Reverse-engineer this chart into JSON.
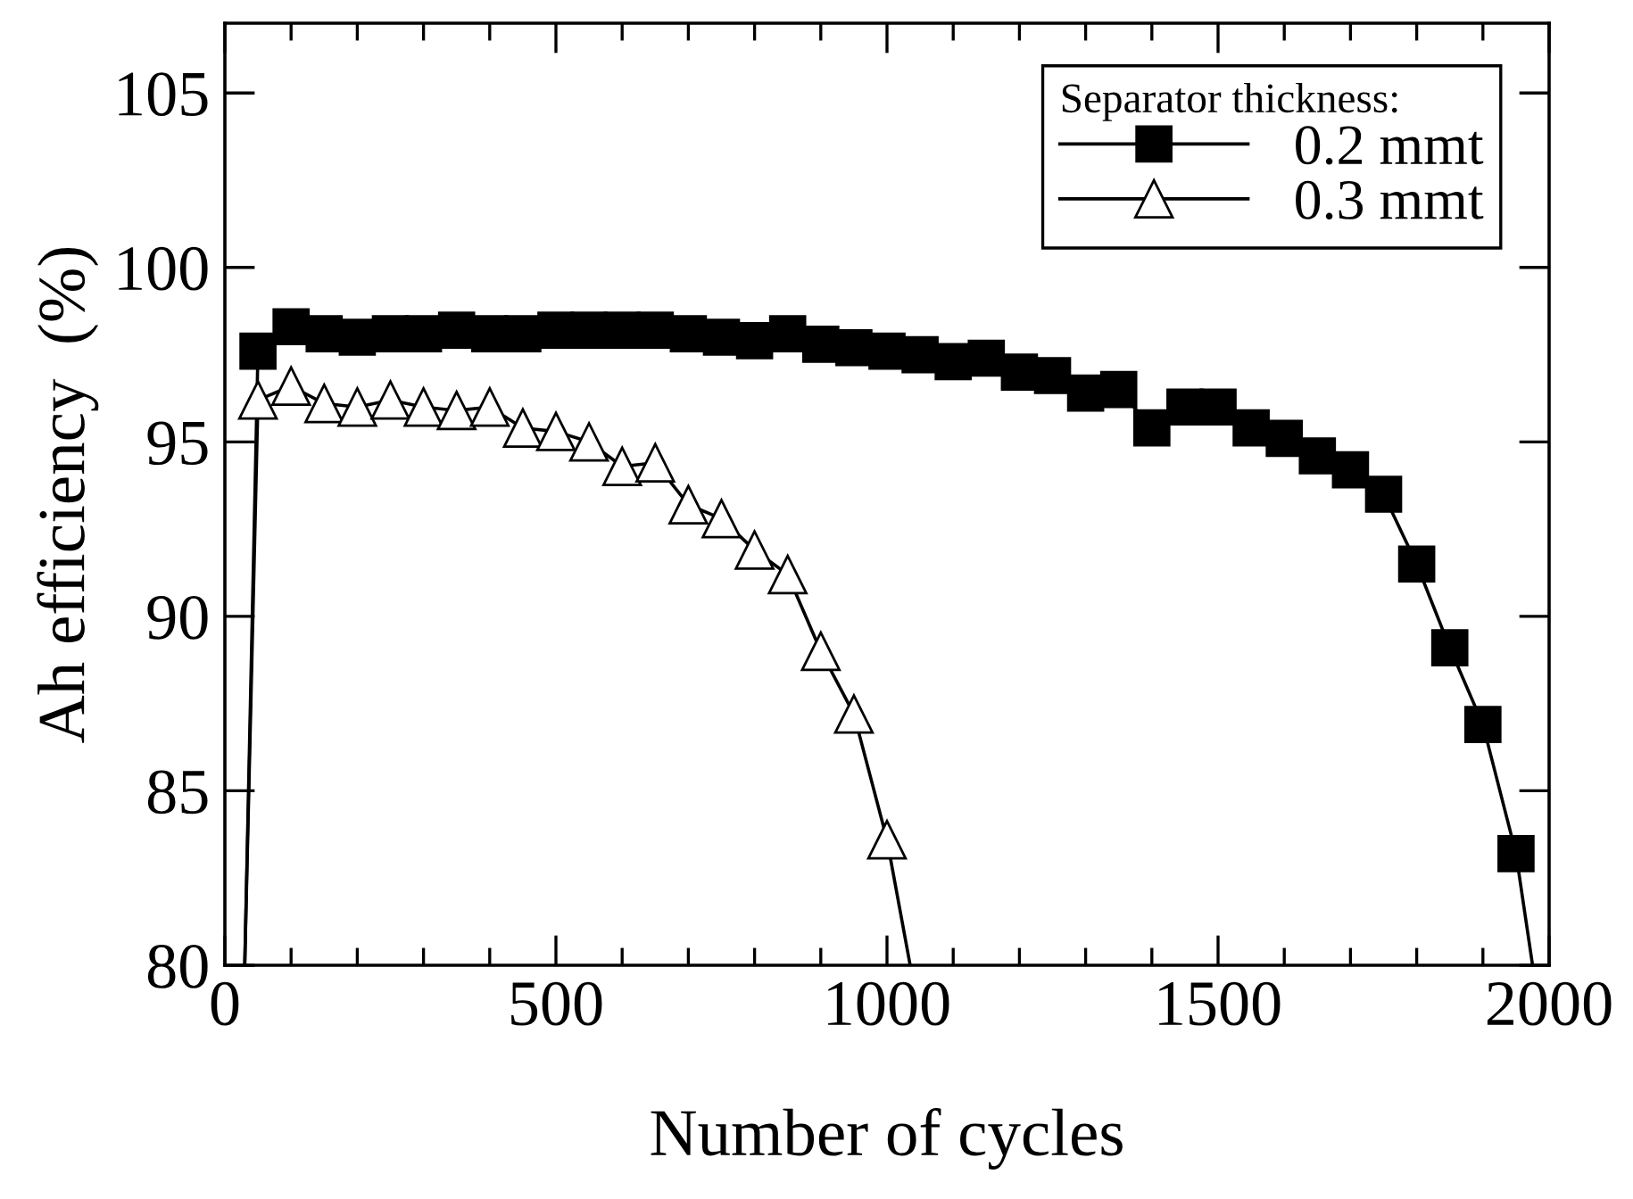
{
  "chart_data": {
    "type": "line",
    "xlabel": "Number of cycles",
    "ylabel": "Ah efficiency  (%)",
    "legend_title": "Separator thickness:",
    "xlim": [
      0,
      2000
    ],
    "ylim": [
      80,
      107
    ],
    "xticks": [
      0,
      {
        "value": 100,
        "label": null
      },
      {
        "value": 200,
        "label": null
      },
      {
        "value": 300,
        "label": null
      },
      {
        "value": 400,
        "label": null
      },
      500,
      {
        "value": 600,
        "label": null
      },
      {
        "value": 700,
        "label": null
      },
      {
        "value": 800,
        "label": null
      },
      {
        "value": 900,
        "label": null
      },
      1000,
      {
        "value": 1100,
        "label": null
      },
      {
        "value": 1200,
        "label": null
      },
      {
        "value": 1300,
        "label": null
      },
      {
        "value": 1400,
        "label": null
      },
      1500,
      {
        "value": 1600,
        "label": null
      },
      {
        "value": 1700,
        "label": null
      },
      {
        "value": 1800,
        "label": null
      },
      {
        "value": 1900,
        "label": null
      },
      2000
    ],
    "yticks": [
      80,
      85,
      90,
      95,
      100,
      105
    ],
    "legend": "top right",
    "grid": false,
    "line_style": "solid",
    "series": [
      {
        "name": "0.2 mmt",
        "color": "#000000",
        "marker": "square",
        "x": [
          30,
          50,
          100,
          150,
          200,
          250,
          300,
          350,
          400,
          450,
          500,
          550,
          600,
          650,
          700,
          750,
          800,
          850,
          900,
          950,
          1000,
          1050,
          1100,
          1150,
          1200,
          1250,
          1300,
          1350,
          1400,
          1450,
          1500,
          1550,
          1600,
          1650,
          1700,
          1750,
          1800,
          1850,
          1900,
          1950,
          1975
        ],
        "values": [
          80,
          97.6,
          98.3,
          98.1,
          98.0,
          98.1,
          98.1,
          98.2,
          98.1,
          98.1,
          98.2,
          98.2,
          98.2,
          98.2,
          98.1,
          98.0,
          97.9,
          98.1,
          97.8,
          97.7,
          97.6,
          97.5,
          97.3,
          97.4,
          97.0,
          96.9,
          96.4,
          96.5,
          95.4,
          96.0,
          96.0,
          95.4,
          95.1,
          94.6,
          94.2,
          93.5,
          91.5,
          89.1,
          86.9,
          83.2,
          80
        ]
      },
      {
        "name": "0.3 mmt",
        "color": "#000000",
        "marker": "triangle",
        "x": [
          30,
          50,
          100,
          150,
          200,
          250,
          300,
          350,
          400,
          450,
          500,
          550,
          600,
          650,
          700,
          750,
          800,
          850,
          900,
          950,
          1000,
          1035
        ],
        "values": [
          80,
          96.2,
          96.6,
          96.1,
          96.0,
          96.2,
          96.0,
          95.9,
          96.0,
          95.4,
          95.3,
          95.0,
          94.3,
          94.4,
          93.2,
          92.8,
          91.9,
          91.2,
          89.0,
          87.2,
          83.6,
          80
        ]
      }
    ]
  }
}
